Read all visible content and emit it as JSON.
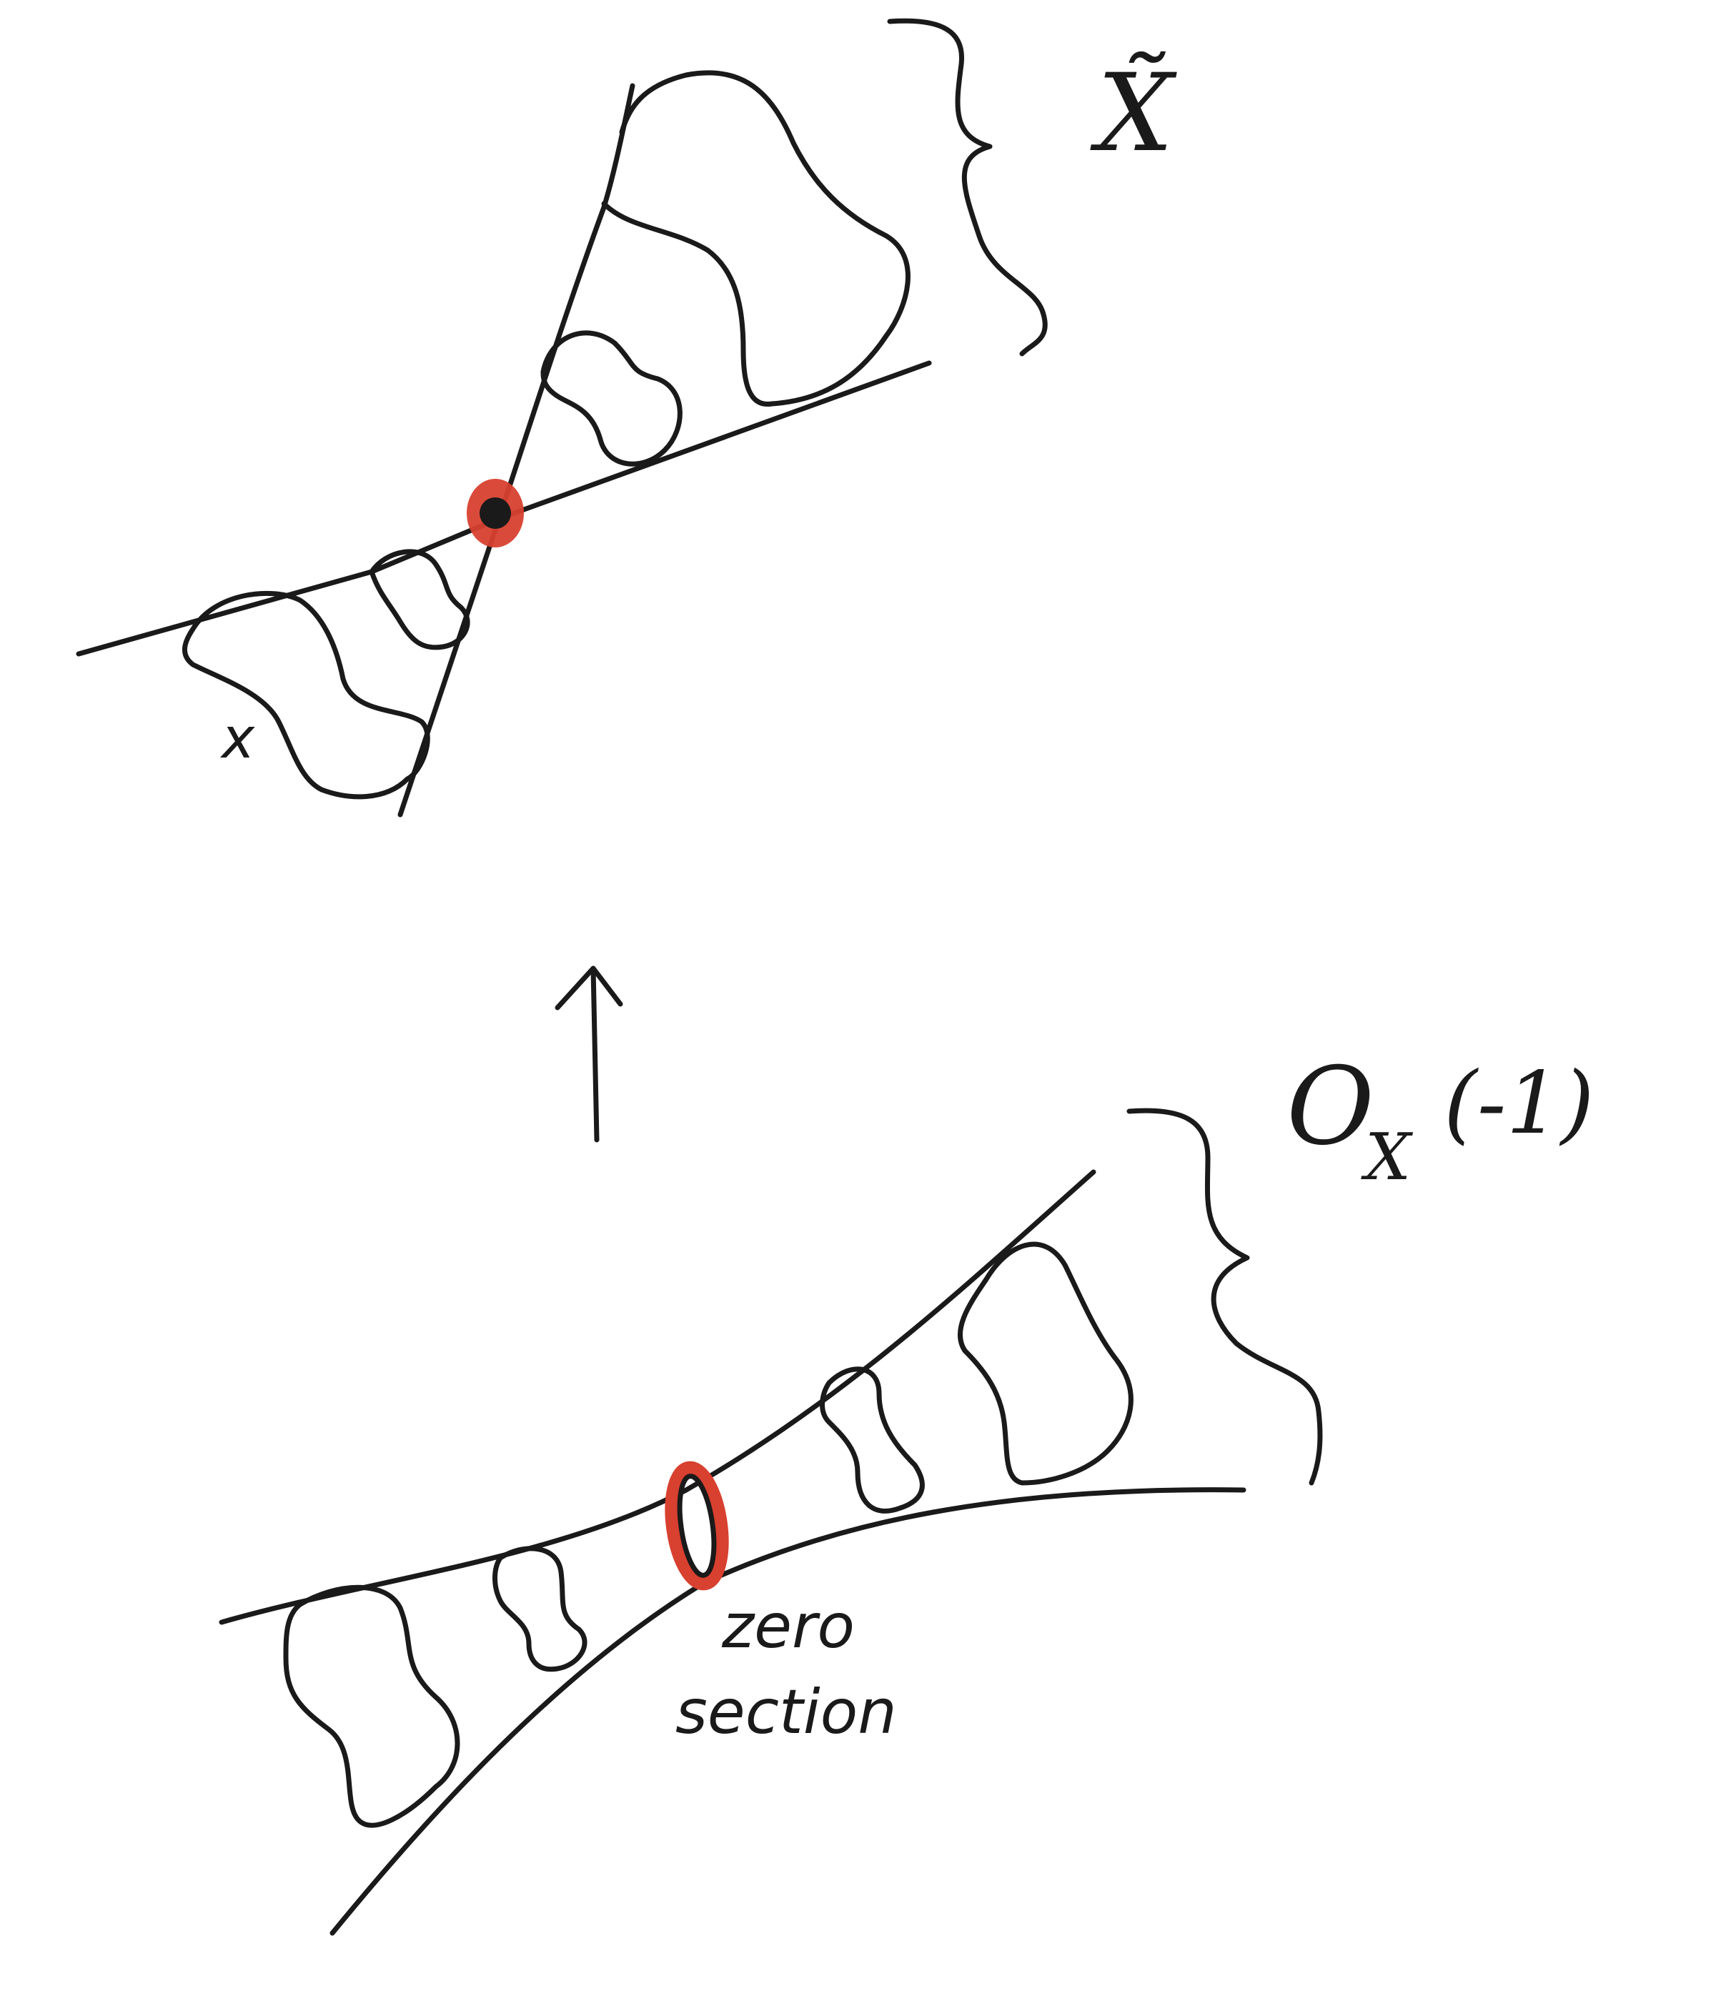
{
  "labels": {
    "x_tilde": "X̃",
    "x_small": "x",
    "o_x_base": "O",
    "o_x_sub": "X",
    "o_x_arg": "(-1)",
    "zero_section_line1": "zero",
    "zero_section_line2": "section"
  },
  "colors": {
    "ink": "#1a1a1a",
    "highlight": "#d8402f"
  },
  "icons": {
    "arrow": "up-arrow"
  }
}
